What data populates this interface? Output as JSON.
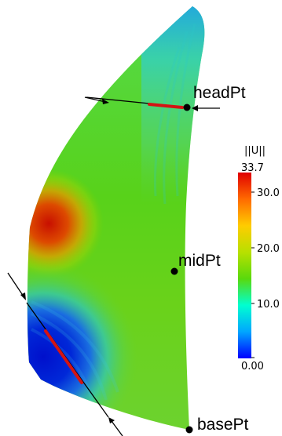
{
  "points": [
    {
      "id": "head",
      "label": "headPt"
    },
    {
      "id": "mid",
      "label": "midPt"
    },
    {
      "id": "base",
      "label": "basePt"
    }
  ],
  "colorbar": {
    "title": "||U||",
    "max_label": "33.7",
    "ticks": [
      "30.0",
      "20.0",
      "10.0",
      "0.00"
    ],
    "stops": [
      "#0000ff",
      "#00a6ff",
      "#00ffd0",
      "#59d90c",
      "#b8e000",
      "#ffcc00",
      "#ff6a00",
      "#e00000"
    ]
  },
  "colors": {
    "marker": "#d41414",
    "arrow": "#000000"
  }
}
